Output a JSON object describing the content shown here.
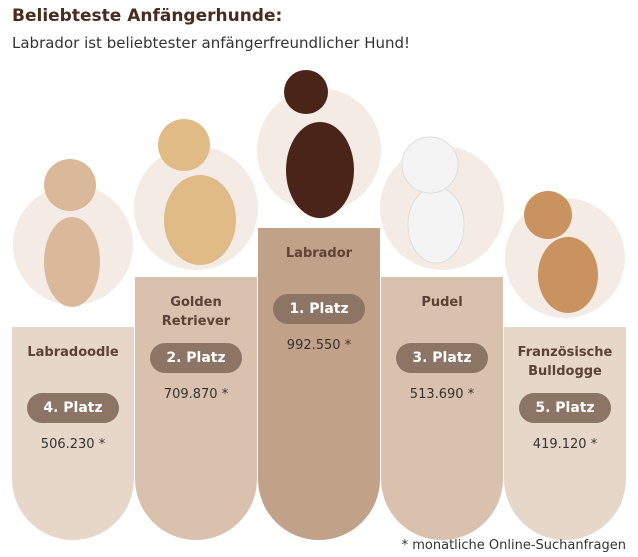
{
  "header": {
    "title": "Beliebteste Anfängerhunde:",
    "subtitle": "Labrador ist beliebtester anfängerfreundlicher Hund!"
  },
  "podiums": [
    {
      "name": "Labradoodle",
      "rank": "4. Platz",
      "searches": "506.230 *"
    },
    {
      "name": "Golden Retriever",
      "rank": "2. Platz",
      "searches": "709.870 *"
    },
    {
      "name": "Labrador",
      "rank": "1. Platz",
      "searches": "992.550 *"
    },
    {
      "name": "Pudel",
      "rank": "3. Platz",
      "searches": "513.690 *"
    },
    {
      "name": "Französische Bulldogge",
      "rank": "5. Platz",
      "searches": "419.120 *"
    }
  ],
  "footnote": "* monatliche Online-Suchanfragen"
}
